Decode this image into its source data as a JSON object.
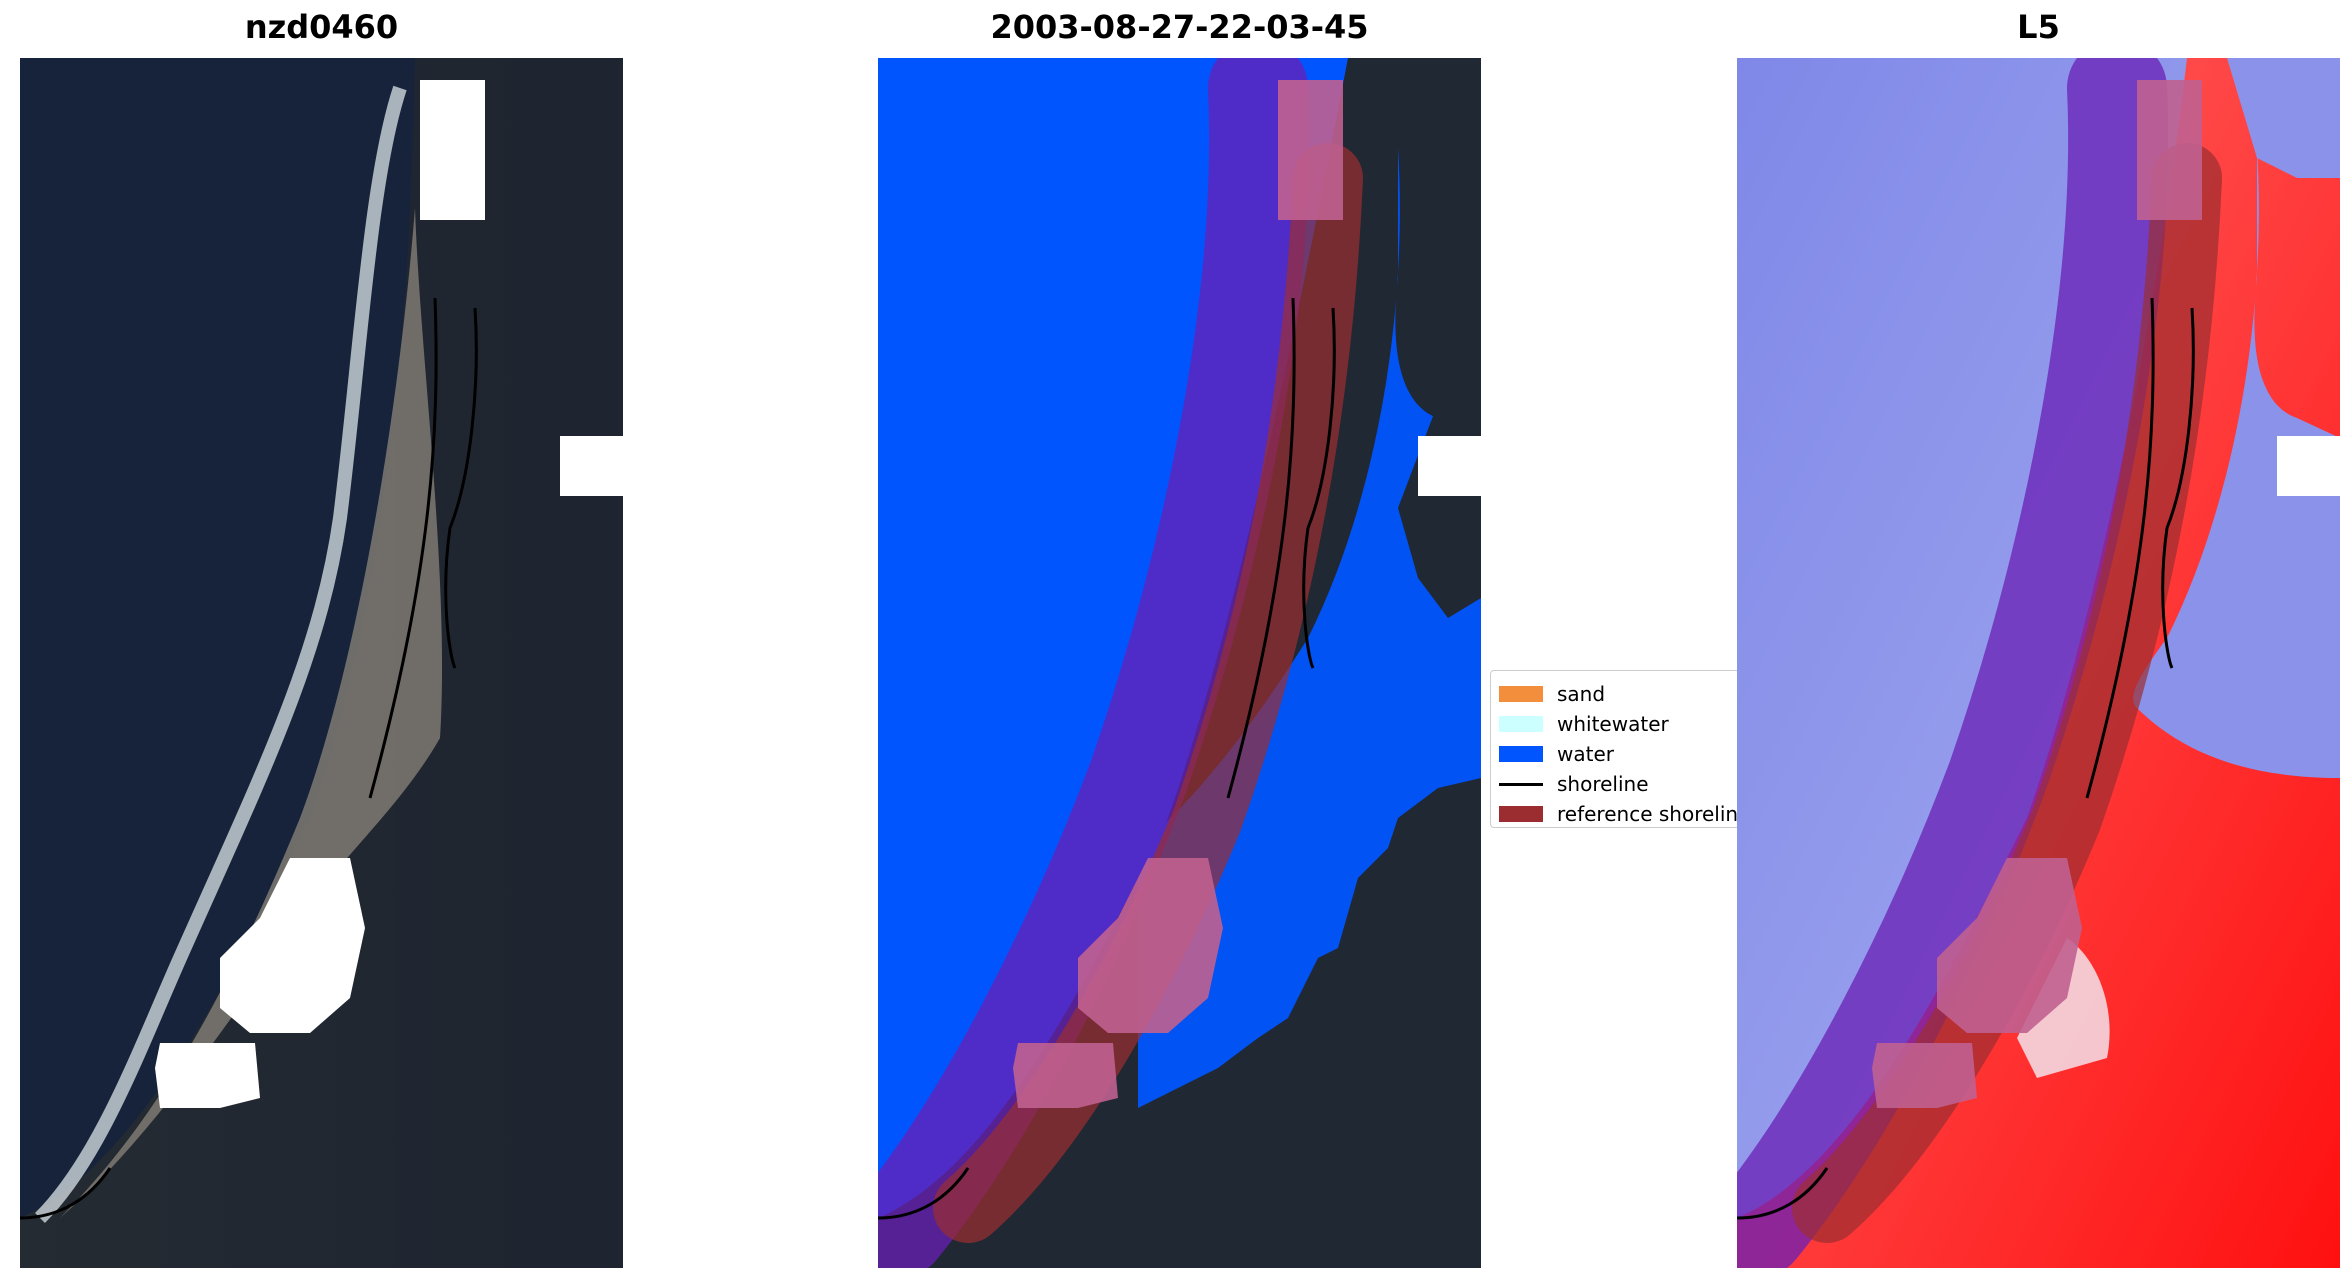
{
  "panels": [
    {
      "title": "nzd0460"
    },
    {
      "title": "2003-08-27-22-03-45"
    },
    {
      "title": "L5"
    }
  ],
  "legend": {
    "items": [
      {
        "label": "sand",
        "color": "#f28e3c"
      },
      {
        "label": "whitewater",
        "color": "#ccffff"
      },
      {
        "label": "water",
        "color": "#0055ff"
      },
      {
        "label": "shoreline",
        "color": "#000000"
      },
      {
        "label": "reference shorelin",
        "color": "#9b2d30"
      }
    ]
  }
}
